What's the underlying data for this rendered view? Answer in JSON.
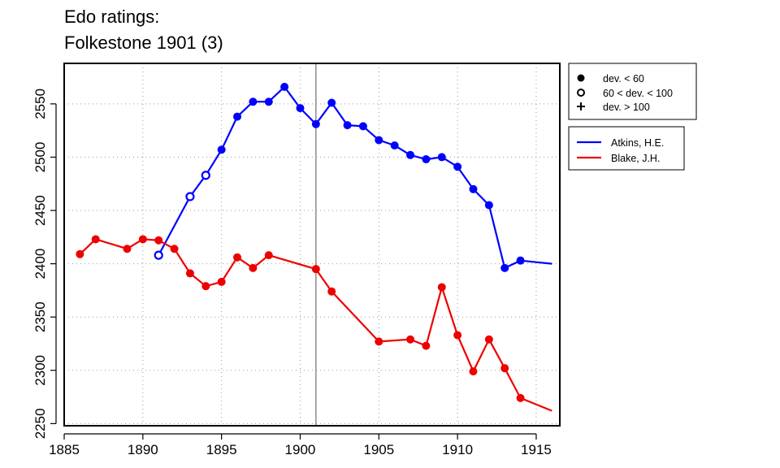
{
  "chart_data": {
    "type": "line",
    "title": "Edo ratings:",
    "subtitle": "Folkestone 1901 (3)",
    "xlabel": "",
    "ylabel": "",
    "xlim": [
      1885,
      1916.5
    ],
    "ylim": [
      2248,
      2588
    ],
    "xticks": [
      1885,
      1890,
      1895,
      1900,
      1905,
      1910,
      1915
    ],
    "yticks": [
      2250,
      2300,
      2350,
      2400,
      2450,
      2500,
      2550
    ],
    "grid": true,
    "vline": 1901,
    "legend_placement": "outside right",
    "deviation_legend": [
      {
        "marker": "filled-circle",
        "label": "dev. < 60"
      },
      {
        "marker": "open-circle",
        "label": "60 < dev. < 100"
      },
      {
        "marker": "plus",
        "label": "dev. > 100"
      }
    ],
    "series": [
      {
        "name": "Atkins, H.E.",
        "color": "#0000ff",
        "points": [
          {
            "x": 1891,
            "y": 2408,
            "marker": "open"
          },
          {
            "x": 1893,
            "y": 2463,
            "marker": "open"
          },
          {
            "x": 1894,
            "y": 2483,
            "marker": "open"
          },
          {
            "x": 1895,
            "y": 2507,
            "marker": "filled"
          },
          {
            "x": 1896,
            "y": 2538,
            "marker": "filled"
          },
          {
            "x": 1897,
            "y": 2552,
            "marker": "filled"
          },
          {
            "x": 1898,
            "y": 2552,
            "marker": "filled"
          },
          {
            "x": 1899,
            "y": 2566,
            "marker": "filled"
          },
          {
            "x": 1900,
            "y": 2546,
            "marker": "filled"
          },
          {
            "x": 1901,
            "y": 2531,
            "marker": "filled"
          },
          {
            "x": 1902,
            "y": 2551,
            "marker": "filled"
          },
          {
            "x": 1903,
            "y": 2530,
            "marker": "filled"
          },
          {
            "x": 1904,
            "y": 2529,
            "marker": "filled"
          },
          {
            "x": 1905,
            "y": 2516,
            "marker": "filled"
          },
          {
            "x": 1906,
            "y": 2511,
            "marker": "filled"
          },
          {
            "x": 1907,
            "y": 2502,
            "marker": "filled"
          },
          {
            "x": 1908,
            "y": 2498,
            "marker": "filled"
          },
          {
            "x": 1909,
            "y": 2500,
            "marker": "filled"
          },
          {
            "x": 1910,
            "y": 2491,
            "marker": "filled"
          },
          {
            "x": 1911,
            "y": 2470,
            "marker": "filled"
          },
          {
            "x": 1912,
            "y": 2455,
            "marker": "filled"
          },
          {
            "x": 1913,
            "y": 2396,
            "marker": "filled"
          },
          {
            "x": 1914,
            "y": 2403,
            "marker": "filled"
          },
          {
            "x": 1916,
            "y": 2400,
            "marker": "none"
          }
        ]
      },
      {
        "name": "Blake, J.H.",
        "color": "#ee0000",
        "points": [
          {
            "x": 1886,
            "y": 2409,
            "marker": "filled"
          },
          {
            "x": 1887,
            "y": 2423,
            "marker": "filled"
          },
          {
            "x": 1889,
            "y": 2414,
            "marker": "filled"
          },
          {
            "x": 1890,
            "y": 2423,
            "marker": "filled"
          },
          {
            "x": 1891,
            "y": 2422,
            "marker": "filled"
          },
          {
            "x": 1892,
            "y": 2414,
            "marker": "filled"
          },
          {
            "x": 1893,
            "y": 2391,
            "marker": "filled"
          },
          {
            "x": 1894,
            "y": 2379,
            "marker": "filled"
          },
          {
            "x": 1895,
            "y": 2383,
            "marker": "filled"
          },
          {
            "x": 1896,
            "y": 2406,
            "marker": "filled"
          },
          {
            "x": 1897,
            "y": 2396,
            "marker": "filled"
          },
          {
            "x": 1898,
            "y": 2408,
            "marker": "filled"
          },
          {
            "x": 1901,
            "y": 2395,
            "marker": "filled"
          },
          {
            "x": 1902,
            "y": 2374,
            "marker": "filled"
          },
          {
            "x": 1905,
            "y": 2327,
            "marker": "filled"
          },
          {
            "x": 1907,
            "y": 2329,
            "marker": "filled"
          },
          {
            "x": 1908,
            "y": 2323,
            "marker": "filled"
          },
          {
            "x": 1909,
            "y": 2378,
            "marker": "filled"
          },
          {
            "x": 1910,
            "y": 2333,
            "marker": "filled"
          },
          {
            "x": 1911,
            "y": 2299,
            "marker": "filled"
          },
          {
            "x": 1912,
            "y": 2329,
            "marker": "filled"
          },
          {
            "x": 1913,
            "y": 2302,
            "marker": "filled"
          },
          {
            "x": 1914,
            "y": 2274,
            "marker": "filled"
          },
          {
            "x": 1916,
            "y": 2262,
            "marker": "none"
          }
        ]
      }
    ]
  }
}
